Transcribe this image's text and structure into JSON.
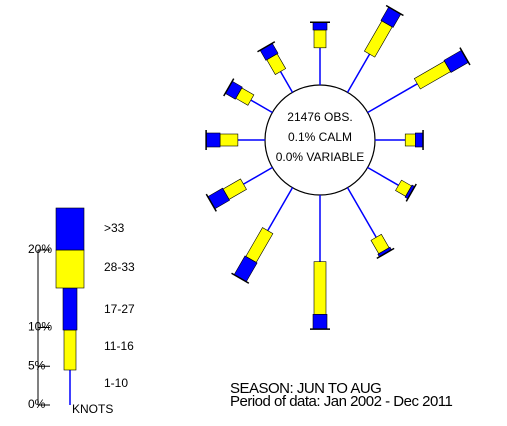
{
  "chart_data": {
    "type": "windrose",
    "center_text": [
      "21476 OBS.",
      "0.1% CALM",
      "0.0% VARIABLE"
    ],
    "x": [
      0,
      30,
      60,
      90,
      120,
      150,
      180,
      210,
      240,
      270,
      300,
      330
    ],
    "series": [
      {
        "name": "1-10",
        "color": "#0000ff",
        "values": [
          4.8,
          5.7,
          7.4,
          3.9,
          4.6,
          7.4,
          8.6,
          6.4,
          4.3,
          3.5,
          3.2,
          3.1
        ]
      },
      {
        "name": "11-16",
        "color": "#ffff00",
        "values": [
          2.3,
          4.5,
          4.5,
          1.3,
          1.5,
          2.0,
          6.8,
          4.3,
          2.6,
          2.3,
          1.8,
          2.2
        ]
      },
      {
        "name": "17-27",
        "color": "#0000ff",
        "values": [
          1.0,
          2.0,
          2.6,
          1.0,
          0.4,
          0.4,
          1.9,
          2.8,
          2.2,
          1.8,
          1.5,
          1.5
        ]
      },
      {
        "name": "28-33",
        "color": "#ffff00",
        "values": [
          0,
          0,
          0,
          0,
          0,
          0,
          0,
          0,
          0,
          0,
          0,
          0
        ]
      },
      {
        "name": ">33",
        "color": "#0000ff",
        "values": [
          0,
          0,
          0,
          0,
          0,
          0,
          0,
          0,
          0,
          0,
          0,
          0
        ]
      }
    ],
    "legend_units": "KNOTS",
    "ylim": [
      0,
      26
    ],
    "yticks": [
      {
        "value": 0,
        "label": "0%"
      },
      {
        "value": 5,
        "label": "5%"
      },
      {
        "value": 10,
        "label": "10%"
      },
      {
        "value": 20,
        "label": "20%"
      }
    ],
    "notes": [
      "SEASON: JUN TO AUG",
      "Period of data: Jan 2002 - Dec 2011"
    ]
  }
}
